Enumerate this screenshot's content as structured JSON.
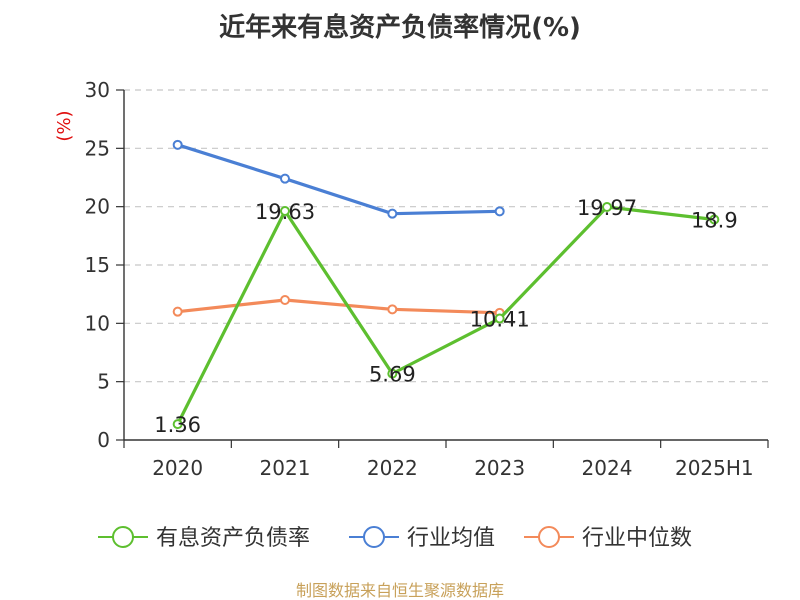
{
  "chart_data": {
    "type": "line",
    "title": "近年来有息资产负债率情况(%)",
    "ylabel": "(%)",
    "categories": [
      "2020",
      "2021",
      "2022",
      "2023",
      "2024",
      "2025H1"
    ],
    "ylim": [
      0,
      30
    ],
    "yticks": [
      0,
      5,
      10,
      15,
      20,
      25,
      30
    ],
    "grid": true,
    "legend_position": "bottom",
    "series": [
      {
        "name": "有息资产负债率",
        "color": "#5dbf2f",
        "values": [
          1.36,
          19.63,
          5.69,
          10.41,
          19.97,
          18.9
        ],
        "labels": [
          "1.36",
          "19.63",
          "5.69",
          "10.41",
          "19.97",
          "18.9"
        ]
      },
      {
        "name": "行业均值",
        "color": "#4a7fd4",
        "values": [
          25.3,
          22.4,
          19.4,
          19.6,
          null,
          null
        ]
      },
      {
        "name": "行业中位数",
        "color": "#f38a5a",
        "values": [
          11.0,
          12.0,
          11.2,
          10.9,
          null,
          null
        ]
      }
    ],
    "source": "制图数据来自恒生聚源数据库"
  }
}
